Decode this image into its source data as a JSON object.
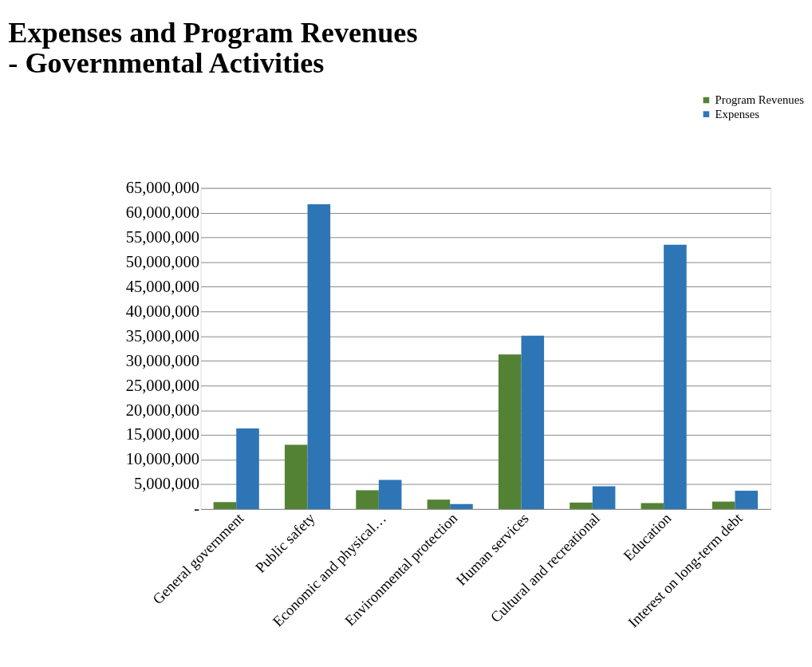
{
  "chart_data": {
    "type": "bar",
    "title": [
      "Expenses and Program Revenues",
      "- Governmental Activities"
    ],
    "categories": [
      "General government",
      "Public safety",
      "Economic and physical…",
      "Environmental protection",
      "Human services",
      "Cultural and recreational",
      "Education",
      "Interest on long-term debt"
    ],
    "series": [
      {
        "name": "Program Revenues",
        "color": "#548235",
        "values": [
          1400000,
          13000000,
          3800000,
          1900000,
          31300000,
          1300000,
          1200000,
          1500000
        ]
      },
      {
        "name": "Expenses",
        "color": "#2e75b6",
        "values": [
          16300000,
          61700000,
          5900000,
          1000000,
          35100000,
          4600000,
          53500000,
          3700000
        ]
      }
    ],
    "ylim": [
      0,
      65000000
    ],
    "yticks": [
      {
        "value": 0,
        "label": "-"
      },
      {
        "value": 5000000,
        "label": "5,000,000"
      },
      {
        "value": 10000000,
        "label": "10,000,000"
      },
      {
        "value": 15000000,
        "label": "15,000,000"
      },
      {
        "value": 20000000,
        "label": "20,000,000"
      },
      {
        "value": 25000000,
        "label": "25,000,000"
      },
      {
        "value": 30000000,
        "label": "30,000,000"
      },
      {
        "value": 35000000,
        "label": "35,000,000"
      },
      {
        "value": 40000000,
        "label": "40,000,000"
      },
      {
        "value": 45000000,
        "label": "45,000,000"
      },
      {
        "value": 50000000,
        "label": "50,000,000"
      },
      {
        "value": 55000000,
        "label": "55,000,000"
      },
      {
        "value": 60000000,
        "label": "60,000,000"
      },
      {
        "value": 65000000,
        "label": "65,000,000"
      }
    ],
    "grid": "y",
    "legend": "top right"
  }
}
